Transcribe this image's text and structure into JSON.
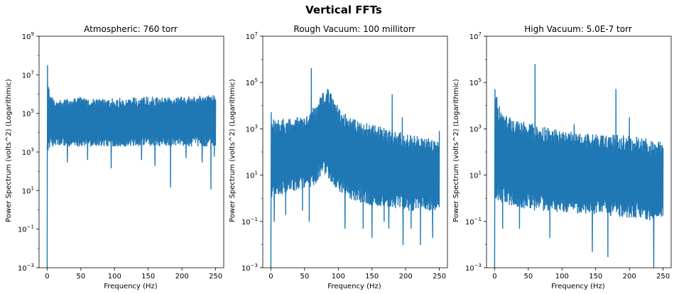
{
  "figure": {
    "suptitle": "Vertical FFTs",
    "series_color": "#1f77b4"
  },
  "chart_data": [
    {
      "type": "line",
      "title": "Atmospheric: 760 torr",
      "xlabel": "Frequency (Hz)",
      "ylabel": "Power Spectrum (volts^2) (Logarithmic)",
      "yscale": "log",
      "xlim": [
        -12,
        262
      ],
      "ylim": [
        0.001,
        1000000000
      ],
      "xticks": [
        0,
        50,
        100,
        150,
        200,
        250
      ],
      "yticks": [
        {
          "value": 0.001,
          "base": "10",
          "exp": "−3"
        },
        {
          "value": 0.1,
          "base": "10",
          "exp": "−1"
        },
        {
          "value": 10,
          "base": "10",
          "exp": "1"
        },
        {
          "value": 1000,
          "base": "10",
          "exp": "3"
        },
        {
          "value": 100000,
          "base": "10",
          "exp": "5"
        },
        {
          "value": 10000000,
          "base": "10",
          "exp": "7"
        },
        {
          "value": 1000000000,
          "base": "10",
          "exp": "9"
        }
      ],
      "grid": false,
      "frequency_range": [
        0,
        250
      ],
      "band_low": [
        [
          0,
          800
        ],
        [
          5,
          2000
        ],
        [
          50,
          2000
        ],
        [
          100,
          2000
        ],
        [
          150,
          2000
        ],
        [
          200,
          2000
        ],
        [
          250,
          2000
        ]
      ],
      "band_high": [
        [
          0,
          30000000
        ],
        [
          3,
          1500000
        ],
        [
          10,
          500000
        ],
        [
          50,
          700000
        ],
        [
          100,
          600000
        ],
        [
          150,
          700000
        ],
        [
          200,
          700000
        ],
        [
          250,
          900000
        ]
      ],
      "dips": [
        [
          0,
          0.001
        ],
        [
          2.5,
          3000
        ],
        [
          30,
          300
        ],
        [
          60,
          400
        ],
        [
          95,
          150
        ],
        [
          140,
          400
        ],
        [
          160,
          200
        ],
        [
          183,
          15
        ],
        [
          206,
          500
        ],
        [
          230,
          300
        ],
        [
          243,
          12
        ],
        [
          248,
          600
        ]
      ],
      "spikes": [
        [
          0.5,
          30000000
        ]
      ]
    },
    {
      "type": "line",
      "title": "Rough Vacuum: 100 millitorr",
      "xlabel": "Frequency (Hz)",
      "ylabel": "Power Spectrum (volts^2) (Logarithmic)",
      "yscale": "log",
      "xlim": [
        -12,
        262
      ],
      "ylim": [
        0.001,
        10000000
      ],
      "xticks": [
        0,
        50,
        100,
        150,
        200,
        250
      ],
      "yticks": [
        {
          "value": 0.001,
          "base": "10",
          "exp": "−3"
        },
        {
          "value": 0.1,
          "base": "10",
          "exp": "−1"
        },
        {
          "value": 10,
          "base": "10",
          "exp": "1"
        },
        {
          "value": 1000,
          "base": "10",
          "exp": "3"
        },
        {
          "value": 100000,
          "base": "10",
          "exp": "5"
        },
        {
          "value": 10000000,
          "base": "10",
          "exp": "7"
        }
      ],
      "grid": false,
      "frequency_range": [
        0,
        250
      ],
      "band_low": [
        [
          0,
          1
        ],
        [
          30,
          2
        ],
        [
          60,
          3
        ],
        [
          80,
          10
        ],
        [
          90,
          5
        ],
        [
          110,
          1
        ],
        [
          150,
          0.5
        ],
        [
          200,
          0.3
        ],
        [
          250,
          0.3
        ]
      ],
      "band_high": [
        [
          0,
          3000
        ],
        [
          25,
          2500
        ],
        [
          55,
          4000
        ],
        [
          70,
          15000
        ],
        [
          80,
          50000
        ],
        [
          85,
          60000
        ],
        [
          95,
          15000
        ],
        [
          115,
          3000
        ],
        [
          150,
          1500
        ],
        [
          200,
          600
        ],
        [
          250,
          300
        ]
      ],
      "dips": [
        [
          0,
          0.001
        ],
        [
          5,
          0.1
        ],
        [
          22,
          0.2
        ],
        [
          47,
          0.3
        ],
        [
          57,
          0.1
        ],
        [
          110,
          0.05
        ],
        [
          137,
          0.05
        ],
        [
          150,
          0.02
        ],
        [
          168,
          0.1
        ],
        [
          175,
          0.05
        ],
        [
          196,
          0.01
        ],
        [
          208,
          0.05
        ],
        [
          222,
          0.01
        ],
        [
          240,
          0.02
        ]
      ],
      "spikes": [
        [
          0.5,
          5000
        ],
        [
          60,
          400000
        ],
        [
          180,
          30000
        ],
        [
          195,
          3000
        ],
        [
          250,
          800
        ]
      ]
    },
    {
      "type": "line",
      "title": "High Vacuum: 5.0E-7 torr",
      "xlabel": "Frequency (Hz)",
      "ylabel": "Power Spectrum (volts^2) (Logarithmic)",
      "yscale": "log",
      "xlim": [
        -12,
        262
      ],
      "ylim": [
        0.001,
        10000000
      ],
      "xticks": [
        0,
        50,
        100,
        150,
        200,
        250
      ],
      "yticks": [
        {
          "value": 0.001,
          "base": "10",
          "exp": "−3"
        },
        {
          "value": 0.1,
          "base": "10",
          "exp": "−1"
        },
        {
          "value": 10,
          "base": "10",
          "exp": "1"
        },
        {
          "value": 1000,
          "base": "10",
          "exp": "3"
        },
        {
          "value": 100000,
          "base": "10",
          "exp": "5"
        },
        {
          "value": 10000000,
          "base": "10",
          "exp": "7"
        }
      ],
      "grid": false,
      "frequency_range": [
        0,
        250
      ],
      "band_low": [
        [
          0,
          1
        ],
        [
          20,
          0.5
        ],
        [
          60,
          0.3
        ],
        [
          150,
          0.2
        ],
        [
          250,
          0.1
        ]
      ],
      "band_high": [
        [
          0,
          50000
        ],
        [
          10,
          5000
        ],
        [
          30,
          2500
        ],
        [
          60,
          1500
        ],
        [
          100,
          800
        ],
        [
          150,
          600
        ],
        [
          200,
          500
        ],
        [
          250,
          300
        ]
      ],
      "dips": [
        [
          0,
          0.001
        ],
        [
          12,
          0.05
        ],
        [
          37,
          0.05
        ],
        [
          82,
          0.02
        ],
        [
          145,
          0.005
        ],
        [
          168,
          0.003
        ],
        [
          236,
          0.001
        ]
      ],
      "spikes": [
        [
          0.5,
          50000
        ],
        [
          60,
          600000
        ],
        [
          118,
          1500
        ],
        [
          180,
          50000
        ],
        [
          200,
          3000
        ]
      ]
    }
  ]
}
